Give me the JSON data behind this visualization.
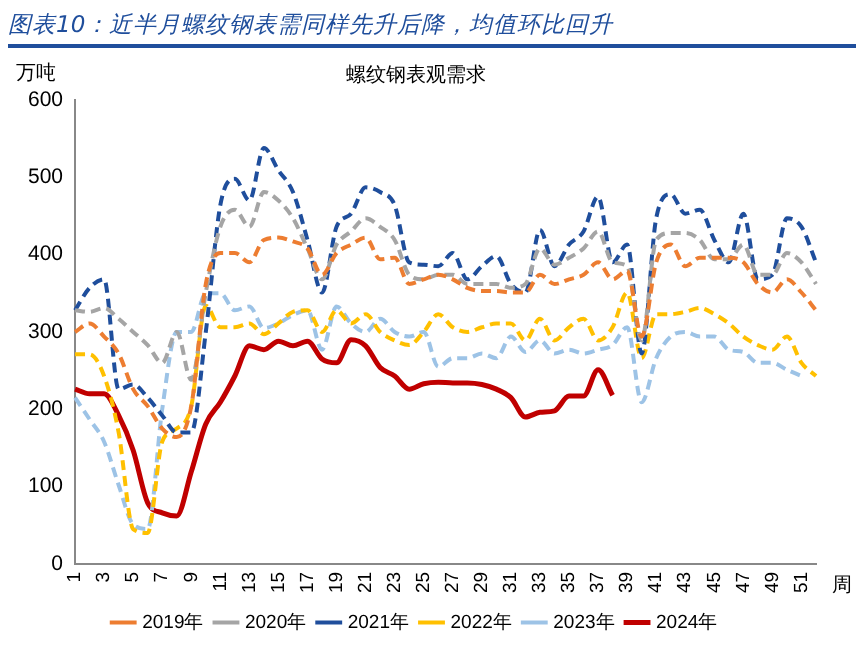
{
  "chart_data": {
    "type": "line",
    "title": "图表10：近半月螺纹钢表需同样先升后降，均值环比回升",
    "subtitle": "螺纹钢表观需求",
    "ylabel": "万吨",
    "xlabel": "周",
    "categories": [
      "1",
      null,
      "3",
      null,
      "5",
      null,
      "7",
      null,
      "9",
      null,
      "11",
      null,
      "13",
      null,
      "15",
      null,
      "17",
      null,
      "19",
      null,
      "21",
      null,
      "23",
      null,
      "25",
      null,
      "27",
      null,
      "29",
      null,
      "31",
      null,
      "33",
      null,
      "35",
      null,
      "37",
      null,
      "39",
      null,
      "41",
      null,
      "43",
      null,
      "45",
      null,
      "47",
      null,
      "49",
      null,
      "51",
      null
    ],
    "ylim": [
      0,
      600
    ],
    "yticks": [
      0,
      100,
      200,
      300,
      400,
      500,
      600
    ],
    "grid": false,
    "legend": "bottom",
    "marker": "none",
    "series": [
      {
        "name": "2019年",
        "color": "#ed7d31",
        "line_style": "dashed",
        "values": [
          300,
          311,
          294,
          272,
          226,
          204,
          175,
          164,
          204,
          362,
          402,
          402,
          390,
          419,
          422,
          417,
          408,
          374,
          402,
          413,
          422,
          394,
          396,
          362,
          368,
          374,
          368,
          357,
          353,
          353,
          351,
          351,
          374,
          362,
          368,
          374,
          390,
          368,
          379,
          294,
          390,
          413,
          385,
          396,
          396,
          396,
          390,
          362,
          351,
          368,
          351,
          328
        ]
      },
      {
        "name": "2020年",
        "color": "#a5a5a5",
        "line_style": "dashed",
        "values": [
          328,
          326,
          331,
          317,
          300,
          283,
          260,
          300,
          238,
          351,
          436,
          458,
          436,
          481,
          470,
          447,
          408,
          368,
          413,
          430,
          447,
          436,
          419,
          374,
          368,
          374,
          374,
          362,
          362,
          362,
          357,
          362,
          408,
          387,
          396,
          408,
          430,
          390,
          385,
          289,
          419,
          428,
          428,
          419,
          394,
          394,
          413,
          374,
          374,
          402,
          390,
          362
        ]
      },
      {
        "name": "2021年",
        "color": "#1f4e9c",
        "line_style": "dashed",
        "values": [
          328,
          357,
          368,
          226,
          232,
          215,
          192,
          170,
          170,
          300,
          464,
          498,
          470,
          538,
          509,
          481,
          419,
          351,
          436,
          453,
          487,
          481,
          464,
          390,
          387,
          385,
          402,
          368,
          385,
          398,
          362,
          351,
          432,
          385,
          413,
          430,
          475,
          390,
          413,
          272,
          447,
          478,
          453,
          458,
          419,
          390,
          453,
          368,
          374,
          447,
          436,
          390
        ]
      },
      {
        "name": "2022年",
        "color": "#ffc000",
        "line_style": "dashed",
        "values": [
          271,
          271,
          243,
          170,
          45,
          40,
          158,
          175,
          204,
          334,
          306,
          306,
          311,
          297,
          311,
          326,
          328,
          300,
          328,
          311,
          323,
          300,
          289,
          283,
          300,
          323,
          306,
          300,
          306,
          311,
          311,
          289,
          317,
          289,
          306,
          317,
          289,
          306,
          351,
          266,
          323,
          323,
          326,
          331,
          323,
          311,
          294,
          283,
          277,
          294,
          260,
          243
        ]
      },
      {
        "name": "2023年",
        "color": "#9dc3e6",
        "line_style": "dashed",
        "values": [
          215,
          187,
          158,
          102,
          51,
          45,
          200,
          300,
          300,
          350,
          350,
          328,
          333,
          305,
          311,
          322,
          328,
          277,
          333,
          311,
          300,
          317,
          300,
          294,
          300,
          255,
          266,
          266,
          272,
          266,
          294,
          274,
          289,
          272,
          277,
          272,
          277,
          283,
          306,
          209,
          266,
          294,
          300,
          294,
          294,
          277,
          274,
          260,
          260,
          251,
          243,
          null
        ]
      },
      {
        "name": "2024年",
        "color": "#c00000",
        "line_style": "solid",
        "values": [
          226,
          220,
          220,
          192,
          147,
          79,
          66,
          62,
          119,
          181,
          209,
          243,
          282,
          277,
          288,
          282,
          288,
          265,
          260,
          290,
          282,
          254,
          243,
          226,
          233,
          235,
          234,
          234,
          232,
          226,
          215,
          190,
          196,
          198,
          217,
          217,
          251,
          218,
          null,
          null,
          null,
          null,
          null,
          null,
          null,
          null,
          null,
          null,
          null,
          null,
          null,
          null
        ]
      }
    ]
  }
}
